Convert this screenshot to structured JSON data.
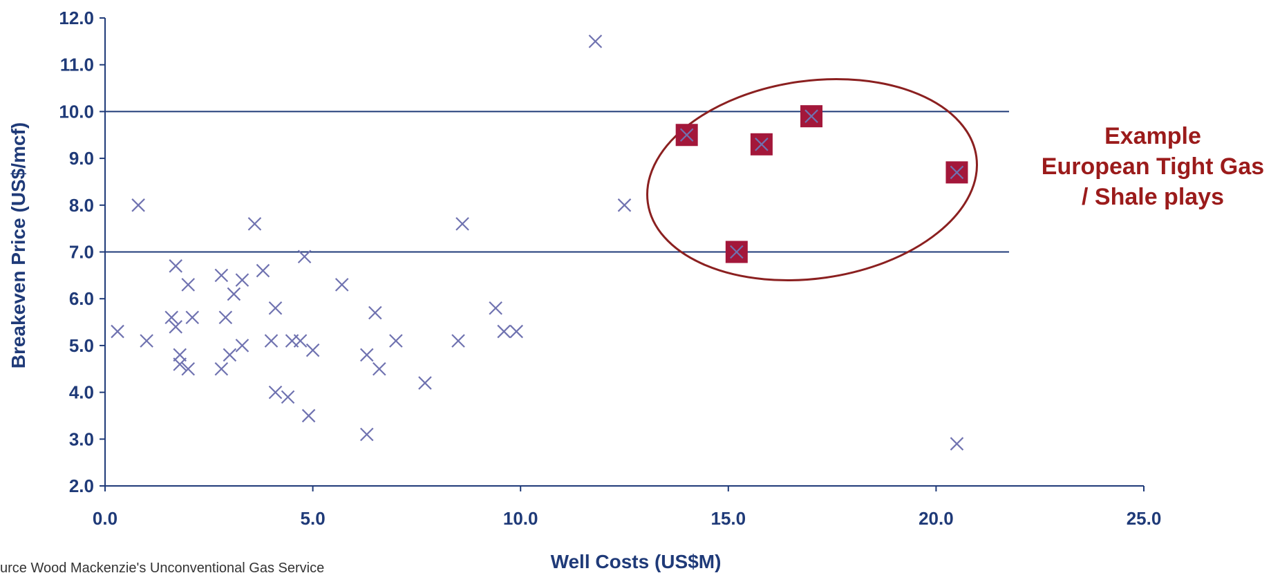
{
  "chart_data": {
    "type": "scatter",
    "xlabel": "Well Costs (US$M)",
    "ylabel": "Breakeven Price (US$/mcf)",
    "xlim": [
      0,
      25
    ],
    "ylim": [
      2,
      12
    ],
    "x_ticks": [
      "0.0",
      "5.0",
      "10.0",
      "15.0",
      "20.0",
      "25.0"
    ],
    "y_ticks": [
      "2.0",
      "3.0",
      "4.0",
      "5.0",
      "6.0",
      "7.0",
      "8.0",
      "9.0",
      "10.0",
      "11.0",
      "12.0"
    ],
    "reference_lines_y": [
      7.0,
      10.0
    ],
    "grid": false,
    "points": [
      {
        "x": 0.3,
        "y": 5.3
      },
      {
        "x": 0.8,
        "y": 8.0
      },
      {
        "x": 1.0,
        "y": 5.1
      },
      {
        "x": 1.6,
        "y": 5.6
      },
      {
        "x": 1.7,
        "y": 5.4
      },
      {
        "x": 1.7,
        "y": 6.7
      },
      {
        "x": 1.8,
        "y": 4.8
      },
      {
        "x": 1.8,
        "y": 4.6
      },
      {
        "x": 2.0,
        "y": 4.5
      },
      {
        "x": 2.0,
        "y": 6.3
      },
      {
        "x": 2.1,
        "y": 5.6
      },
      {
        "x": 2.8,
        "y": 4.5
      },
      {
        "x": 2.8,
        "y": 6.5
      },
      {
        "x": 2.9,
        "y": 5.6
      },
      {
        "x": 3.0,
        "y": 4.8
      },
      {
        "x": 3.1,
        "y": 6.1
      },
      {
        "x": 3.3,
        "y": 6.4
      },
      {
        "x": 3.3,
        "y": 5.0
      },
      {
        "x": 3.6,
        "y": 7.6
      },
      {
        "x": 3.8,
        "y": 6.6
      },
      {
        "x": 4.0,
        "y": 5.1
      },
      {
        "x": 4.1,
        "y": 5.8
      },
      {
        "x": 4.1,
        "y": 4.0
      },
      {
        "x": 4.4,
        "y": 3.9
      },
      {
        "x": 4.5,
        "y": 5.1
      },
      {
        "x": 4.7,
        "y": 5.1
      },
      {
        "x": 4.8,
        "y": 6.9
      },
      {
        "x": 4.9,
        "y": 3.5
      },
      {
        "x": 5.0,
        "y": 4.9
      },
      {
        "x": 5.7,
        "y": 6.3
      },
      {
        "x": 6.3,
        "y": 4.8
      },
      {
        "x": 6.3,
        "y": 3.1
      },
      {
        "x": 6.5,
        "y": 5.7
      },
      {
        "x": 6.6,
        "y": 4.5
      },
      {
        "x": 7.0,
        "y": 5.1
      },
      {
        "x": 7.7,
        "y": 4.2
      },
      {
        "x": 8.5,
        "y": 5.1
      },
      {
        "x": 8.6,
        "y": 7.6
      },
      {
        "x": 9.4,
        "y": 5.8
      },
      {
        "x": 9.6,
        "y": 5.3
      },
      {
        "x": 9.9,
        "y": 5.3
      },
      {
        "x": 11.8,
        "y": 11.5
      },
      {
        "x": 12.5,
        "y": 8.0
      },
      {
        "x": 20.5,
        "y": 2.9
      }
    ],
    "highlighted_points": [
      {
        "x": 14.0,
        "y": 9.5
      },
      {
        "x": 15.8,
        "y": 9.3
      },
      {
        "x": 17.0,
        "y": 9.9
      },
      {
        "x": 15.2,
        "y": 7.0
      },
      {
        "x": 20.5,
        "y": 8.7
      }
    ],
    "annotation": {
      "lines": [
        "Example",
        "European Tight Gas",
        "/ Shale plays"
      ]
    },
    "source_text": "urce Wood Mackenzie's Unconventional Gas Service",
    "colors": {
      "axis": "#1f3a78",
      "marker": "#6f72b0",
      "highlight": "#a3173a",
      "annotation": "#9b1b1b",
      "ellipse": "#8b2020"
    }
  }
}
